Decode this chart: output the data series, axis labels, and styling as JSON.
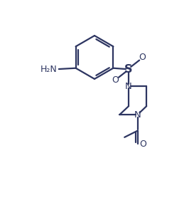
{
  "bg_color": "#ffffff",
  "line_color": "#2d3561",
  "line_width": 1.6,
  "text_color": "#2d3561",
  "font_size": 8.5,
  "figsize": [
    2.66,
    2.88
  ],
  "dpi": 100,
  "xlim": [
    0,
    10
  ],
  "ylim": [
    0,
    10.8
  ]
}
